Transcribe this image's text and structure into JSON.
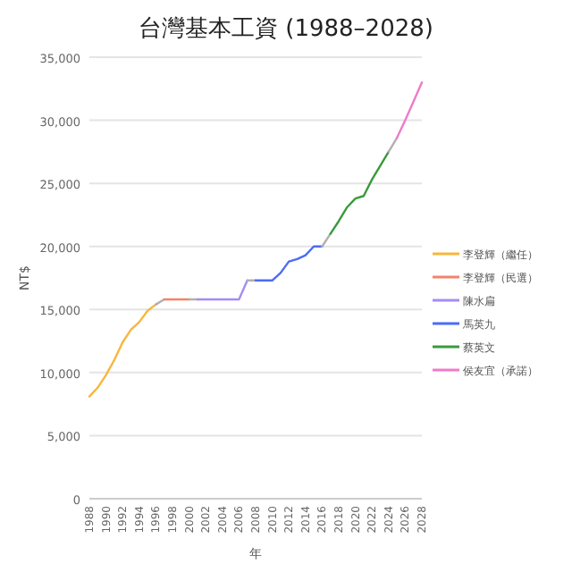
{
  "chart_data": {
    "type": "line",
    "title": "台灣基本工資 (1988–2028)",
    "xlabel": "年",
    "ylabel": "NT$",
    "xlim": [
      1988,
      2028
    ],
    "xticks": [
      1988,
      1990,
      1992,
      1994,
      1996,
      1998,
      2000,
      2002,
      2004,
      2006,
      2008,
      2010,
      2012,
      2014,
      2016,
      2018,
      2020,
      2022,
      2024,
      2026,
      2028
    ],
    "ylim": [
      0,
      35000
    ],
    "yticks": [
      {
        "value": 0,
        "label": "0"
      },
      {
        "value": 5000,
        "label": "5,000"
      },
      {
        "value": 10000,
        "label": "10,000"
      },
      {
        "value": 15000,
        "label": "15,000"
      },
      {
        "value": 20000,
        "label": "20,000"
      },
      {
        "value": 25000,
        "label": "25,000"
      },
      {
        "value": 30000,
        "label": "30,000"
      },
      {
        "value": 35000,
        "label": "35,000"
      }
    ],
    "grid": "y",
    "legend": "right",
    "marker": "none",
    "line_style": "solid",
    "series": [
      {
        "name": "李登輝（繼任）",
        "color": "#f6b73c",
        "x": [
          1988,
          1989,
          1990,
          1991,
          1992,
          1993,
          1994,
          1995,
          1996
        ],
        "values": [
          8100,
          8800,
          9800,
          11000,
          12400,
          13400,
          14000,
          14900,
          15400
        ]
      },
      {
        "color": "#b0b0b0",
        "x": [
          1996,
          1997
        ],
        "values": [
          15400,
          15800
        ]
      },
      {
        "name": "李登輝（民選）",
        "color": "#f4826a",
        "x": [
          1997,
          1998,
          1999,
          2000
        ],
        "values": [
          15800,
          15800,
          15800,
          15800
        ]
      },
      {
        "color": "#b0b0b0",
        "x": [
          2000,
          2001
        ],
        "values": [
          15800,
          15800
        ]
      },
      {
        "name": "陳水扁",
        "color": "#a58cf5",
        "x": [
          2001,
          2002,
          2003,
          2004,
          2005,
          2006,
          2007
        ],
        "values": [
          15800,
          15800,
          15800,
          15800,
          15800,
          15800,
          17300
        ]
      },
      {
        "color": "#b0b0b0",
        "x": [
          2007,
          2008
        ],
        "values": [
          17300,
          17300
        ]
      },
      {
        "name": "馬英九",
        "color": "#4a6cf7",
        "x": [
          2008,
          2009,
          2010,
          2011,
          2012,
          2013,
          2014,
          2015,
          2016
        ],
        "values": [
          17300,
          17300,
          17300,
          17900,
          18800,
          19000,
          19300,
          20000,
          20000
        ]
      },
      {
        "color": "#b0b0b0",
        "x": [
          2016,
          2017
        ],
        "values": [
          20000,
          21000
        ]
      },
      {
        "name": "蔡英文",
        "color": "#3a9a3a",
        "x": [
          2017,
          2018,
          2019,
          2020,
          2021,
          2022,
          2023,
          2024
        ],
        "values": [
          21000,
          22000,
          23100,
          23800,
          24000,
          25300,
          26400,
          27500
        ]
      },
      {
        "color": "#b0b0b0",
        "x": [
          2024,
          2025
        ],
        "values": [
          27500,
          28600
        ]
      },
      {
        "name": "侯友宜（承諾）",
        "color": "#f07ac8",
        "x": [
          2025,
          2026,
          2027,
          2028
        ],
        "values": [
          28600,
          30000,
          31500,
          33000
        ]
      }
    ]
  }
}
